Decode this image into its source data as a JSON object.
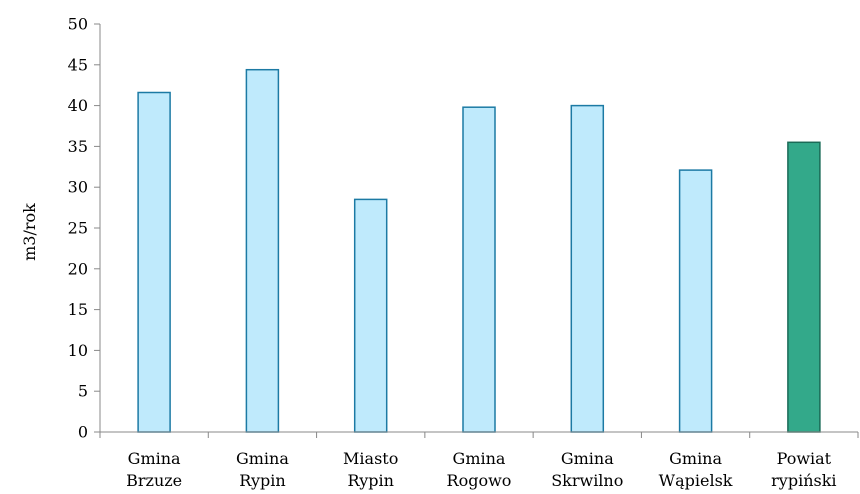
{
  "chart_data": {
    "type": "bar",
    "title": "",
    "xlabel": "",
    "ylabel": "m3/rok",
    "ylim": [
      0,
      50
    ],
    "y_ticks": [
      0,
      5,
      10,
      15,
      20,
      25,
      30,
      35,
      40,
      45,
      50
    ],
    "grid": false,
    "legend": "none",
    "categories": [
      [
        "Gmina",
        "Brzuze"
      ],
      [
        "Gmina",
        "Rypin"
      ],
      [
        "Miasto",
        "Rypin"
      ],
      [
        "Gmina",
        "Rogowo"
      ],
      [
        "Gmina",
        "Skrwilno"
      ],
      [
        "Gmina",
        "Wąpielsk"
      ],
      [
        "Powiat",
        "rypiński"
      ]
    ],
    "values": [
      41.6,
      44.4,
      28.5,
      39.8,
      40.0,
      32.1,
      35.5
    ],
    "colors": {
      "bar_fill": "#bfeafc",
      "bar_stroke": "#1c7aa4",
      "highlight_fill": "#33a98a",
      "highlight_stroke": "#1a6b57",
      "highlight_index": 6,
      "axis": "#888888"
    }
  }
}
